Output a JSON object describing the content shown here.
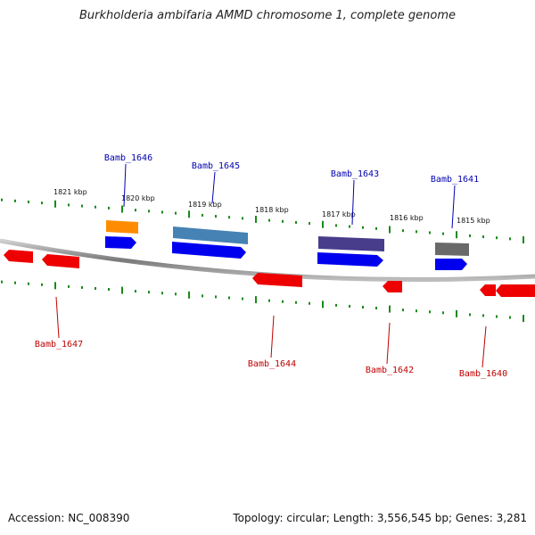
{
  "title": "Burkholderia ambifaria AMMD chromosome 1, complete genome",
  "footer": {
    "accession": "Accession: NC_008390",
    "summary": "Topology: circular; Length: 3,556,545 bp; Genes: 3,281"
  },
  "colors": {
    "backbone": "#8a8a8a",
    "ticks": "#1a8a1a",
    "forward_label": "#0000b0",
    "reverse_label": "#c00000",
    "forward_cds": "#0000ee",
    "reverse_cds": "#ee0000"
  },
  "scale_labels": [
    "1821 kbp",
    "1820 kbp",
    "1819 kbp",
    "1818 kbp",
    "1817 kbp",
    "1816 kbp",
    "1815 kbp"
  ],
  "forward_genes": [
    {
      "label": "Bamb_1646",
      "feature_color": "#ff8c00"
    },
    {
      "label": "Bamb_1645",
      "feature_color": "#4682b4"
    },
    {
      "label": "Bamb_1643",
      "feature_color": "#483d8b"
    },
    {
      "label": "Bamb_1641",
      "feature_color": "#696969"
    }
  ],
  "reverse_genes": [
    {
      "label": "Bamb_1647"
    },
    {
      "label": "Bamb_1644"
    },
    {
      "label": "Bamb_1642"
    },
    {
      "label": "Bamb_1640"
    }
  ]
}
